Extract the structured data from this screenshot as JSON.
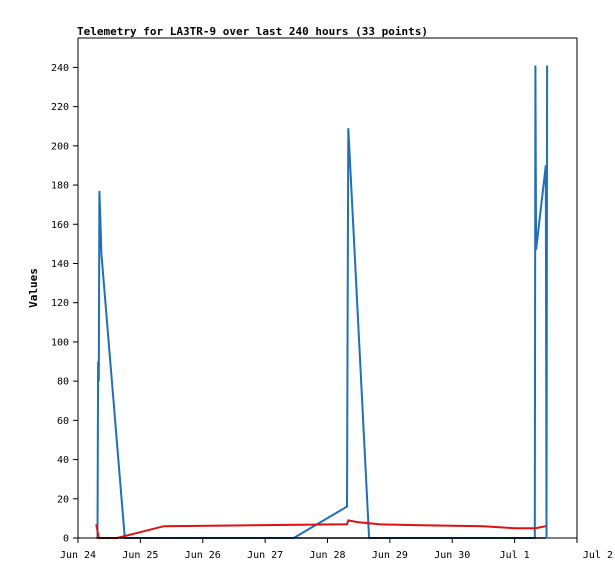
{
  "chart_data": {
    "type": "line",
    "title": "Telemetry for LA3TR-9 over last 240 hours (33 points)",
    "xlabel": "",
    "ylabel": "Values",
    "xlim": [
      "2024-06-24T00:00",
      "2024-07-02T00:00"
    ],
    "ylim": [
      0,
      255
    ],
    "grid": false,
    "legend": "none",
    "x_tick_labels": [
      "Jun 24",
      "Jun 25",
      "Jun 26",
      "Jun 27",
      "Jun 28",
      "Jun 29",
      "Jun 30",
      "Jul 1",
      "Jul 2"
    ],
    "y_ticks": [
      0,
      20,
      40,
      60,
      80,
      100,
      120,
      140,
      160,
      180,
      200,
      220,
      240
    ],
    "series": [
      {
        "color": "#1f6fc0",
        "points": [
          [
            "2024-06-24T07:30",
            0
          ],
          [
            "2024-06-24T07:45",
            90
          ],
          [
            "2024-06-24T08:00",
            80
          ],
          [
            "2024-06-24T08:15",
            177
          ],
          [
            "2024-06-24T08:45",
            157
          ],
          [
            "2024-06-24T09:00",
            145
          ],
          [
            "2024-06-24T18:00",
            0
          ],
          [
            "2024-06-27T11:00",
            0
          ],
          [
            "2024-06-28T07:30",
            16
          ],
          [
            "2024-06-28T07:45",
            110
          ],
          [
            "2024-06-28T08:00",
            209
          ],
          [
            "2024-06-28T16:00",
            0
          ],
          [
            "2024-07-01T07:45",
            0
          ],
          [
            "2024-07-01T08:00",
            241
          ],
          [
            "2024-07-01T08:15",
            147
          ],
          [
            "2024-07-01T12:00",
            190
          ],
          [
            "2024-07-01T12:15",
            0
          ],
          [
            "2024-07-01T12:30",
            241
          ]
        ]
      },
      {
        "color": "#e01010",
        "points": [
          [
            "2024-06-24T07:00",
            7
          ],
          [
            "2024-06-24T08:00",
            0
          ],
          [
            "2024-06-24T15:00",
            0
          ],
          [
            "2024-06-25T09:00",
            6
          ],
          [
            "2024-06-28T07:30",
            7
          ],
          [
            "2024-06-28T08:00",
            9
          ],
          [
            "2024-06-28T12:00",
            8
          ],
          [
            "2024-06-28T20:00",
            7
          ],
          [
            "2024-06-29T12:00",
            6.5
          ],
          [
            "2024-06-30T12:00",
            6
          ],
          [
            "2024-07-01T00:00",
            5
          ],
          [
            "2024-07-01T08:00",
            5
          ],
          [
            "2024-07-01T12:00",
            6
          ]
        ]
      },
      {
        "color": "#000000",
        "points": [
          [
            "2024-06-24T07:00",
            0
          ],
          [
            "2024-07-01T12:00",
            0
          ]
        ]
      }
    ]
  }
}
